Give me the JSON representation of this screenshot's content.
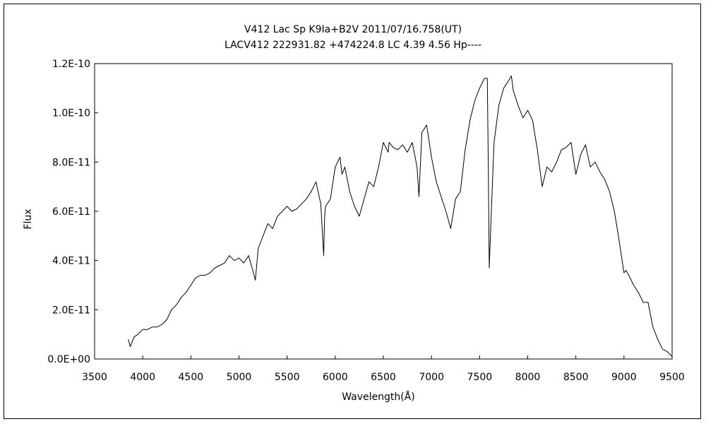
{
  "chart_data": {
    "type": "line",
    "title": "V412 Lac    Sp K9Ia+B2V    2011/07/16.758(UT)",
    "subtitle": "LACV412 222931.82 +474224.8 LC 4.39 4.56 Hp----",
    "xlabel": "Wavelength(Å)",
    "ylabel": "Flux",
    "xlim": [
      3500,
      9500
    ],
    "ylim": [
      0,
      1.2e-10
    ],
    "x_ticks": [
      3500,
      4000,
      4500,
      5000,
      5500,
      6000,
      6500,
      7000,
      7500,
      8000,
      8500,
      9000,
      9500
    ],
    "x_tick_labels": [
      "3500",
      "4000",
      "4500",
      "5000",
      "5500",
      "6000",
      "6500",
      "7000",
      "7500",
      "8000",
      "8500",
      "9000",
      "9500"
    ],
    "y_ticks": [
      0,
      2e-11,
      4e-11,
      6e-11,
      8e-11,
      1e-10,
      1.2e-10
    ],
    "y_tick_labels": [
      "0.0E+00",
      "2.0E-11",
      "4.0E-11",
      "6.0E-11",
      "8.0E-11",
      "1.0E-10",
      "1.2E-10"
    ],
    "grid": false,
    "legend": "none",
    "color": "#000000",
    "series": [
      {
        "x": [
          3850,
          3870,
          3890,
          3910,
          3950,
          4000,
          4050,
          4100,
          4150,
          4200,
          4250,
          4300,
          4350,
          4400,
          4450,
          4500,
          4550,
          4600,
          4650,
          4700,
          4750,
          4800,
          4850,
          4900,
          4950,
          5000,
          5050,
          5100,
          5150,
          5170,
          5200,
          5250,
          5300,
          5350,
          5400,
          5450,
          5500,
          5550,
          5600,
          5650,
          5700,
          5750,
          5800,
          5850,
          5880,
          5890,
          5900,
          5950,
          6000,
          6050,
          6070,
          6100,
          6150,
          6200,
          6250,
          6300,
          6350,
          6400,
          6450,
          6500,
          6550,
          6560,
          6600,
          6650,
          6700,
          6750,
          6800,
          6850,
          6870,
          6900,
          6950,
          7000,
          7050,
          7100,
          7150,
          7200,
          7250,
          7300,
          7350,
          7400,
          7450,
          7500,
          7550,
          7580,
          7590,
          7600,
          7620,
          7650,
          7700,
          7750,
          7800,
          7830,
          7850,
          7900,
          7950,
          8000,
          8050,
          8100,
          8150,
          8200,
          8250,
          8300,
          8350,
          8400,
          8450,
          8500,
          8550,
          8600,
          8650,
          8700,
          8750,
          8800,
          8850,
          8900,
          8950,
          9000,
          9020,
          9050,
          9100,
          9150,
          9200,
          9250,
          9300,
          9350,
          9400,
          9450,
          9500
        ],
        "y": [
          8e-12,
          5e-12,
          7e-12,
          9e-12,
          1e-11,
          1.2e-11,
          1.2e-11,
          1.3e-11,
          1.3e-11,
          1.4e-11,
          1.6e-11,
          2e-11,
          2.2e-11,
          2.5e-11,
          2.7e-11,
          3e-11,
          3.3e-11,
          3.4e-11,
          3.4e-11,
          3.5e-11,
          3.7e-11,
          3.8e-11,
          3.9e-11,
          4.2e-11,
          4e-11,
          4.1e-11,
          3.9e-11,
          4.2e-11,
          3.5e-11,
          3.2e-11,
          4.5e-11,
          5e-11,
          5.5e-11,
          5.3e-11,
          5.8e-11,
          6e-11,
          6.2e-11,
          6e-11,
          6.1e-11,
          6.3e-11,
          6.5e-11,
          6.8e-11,
          7.2e-11,
          6.3e-11,
          4.2e-11,
          5.8e-11,
          6.2e-11,
          6.5e-11,
          7.8e-11,
          8.2e-11,
          7.5e-11,
          7.8e-11,
          6.8e-11,
          6.2e-11,
          5.8e-11,
          6.5e-11,
          7.2e-11,
          7e-11,
          7.8e-11,
          8.8e-11,
          8.4e-11,
          8.8e-11,
          8.6e-11,
          8.5e-11,
          8.7e-11,
          8.4e-11,
          8.8e-11,
          7.8e-11,
          6.6e-11,
          9.2e-11,
          9.5e-11,
          8.2e-11,
          7.2e-11,
          6.6e-11,
          6e-11,
          5.3e-11,
          6.5e-11,
          6.8e-11,
          8.5e-11,
          9.7e-11,
          1.05e-10,
          1.1e-10,
          1.14e-10,
          1.14e-10,
          8e-11,
          3.7e-11,
          5.8e-11,
          8.8e-11,
          1.03e-10,
          1.1e-10,
          1.13e-10,
          1.15e-10,
          1.09e-10,
          1.03e-10,
          9.8e-11,
          1.01e-10,
          9.7e-11,
          8.5e-11,
          7e-11,
          7.8e-11,
          7.6e-11,
          8e-11,
          8.5e-11,
          8.6e-11,
          8.8e-11,
          7.5e-11,
          8.3e-11,
          8.7e-11,
          7.8e-11,
          8e-11,
          7.6e-11,
          7.3e-11,
          6.8e-11,
          6e-11,
          4.8e-11,
          3.5e-11,
          3.6e-11,
          3.4e-11,
          3e-11,
          2.7e-11,
          2.3e-11,
          2.3e-11,
          1.3e-11,
          8e-12,
          4e-12,
          3e-12,
          1e-12
        ]
      }
    ]
  }
}
